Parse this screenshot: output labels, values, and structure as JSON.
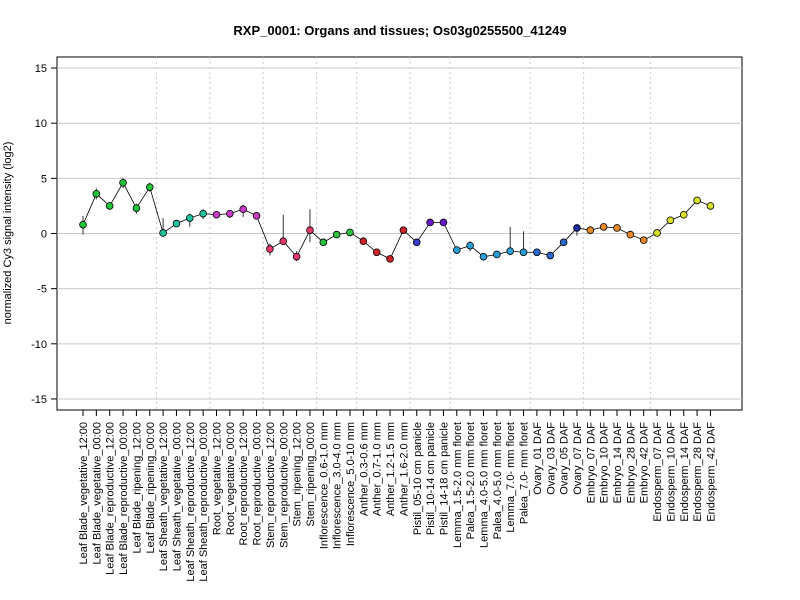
{
  "chart_data": {
    "type": "line",
    "title": "RXP_0001: Organs and tissues; Os03g0255500_41249",
    "ylabel": "normalized Cy3 signal intensity (log2)",
    "xlabel": "",
    "ylim": [
      -16,
      16
    ],
    "yticks": [
      -15,
      -10,
      -5,
      0,
      5,
      10,
      15
    ],
    "grid": {
      "horizontal": true,
      "vertical_dotted_separators": true
    },
    "categories": [
      "Leaf Blade_vegetative_12:00",
      "Leaf Blade_vegetative_00:00",
      "Leaf Blade_reproductive_12:00",
      "Leaf Blade_reproductive_00:00",
      "Leaf Blade_ripening_12:00",
      "Leaf Blade_ripening_00:00",
      "Leaf Sheath_vegetative_12:00",
      "Leaf Sheath_vegetative_00:00",
      "Leaf Sheath_reproductive_12:00",
      "Leaf Sheath_reproductive_00:00",
      "Root_vegetative_12:00",
      "Root_vegetative_00:00",
      "Root_reproductive_12:00",
      "Root_reproductive_00:00",
      "Stem_reproductive_12:00",
      "Stem_reproductive_00:00",
      "Stem_ripening_12:00",
      "Stem_ripening_00:00",
      "Inflorescence_0.6-1.0 mm",
      "Inflorescence_3.0-4.0 mm",
      "Inflorescence_5.0-10 mm",
      "Anther_0.3-0.6 mm",
      "Anther_0.7-1.0 mm",
      "Anther_1.2-1.5 mm",
      "Anther_1.6-2.0 mm",
      "Pistil_05-10 cm panicle",
      "Pistil_10-14 cm panicle",
      "Pistil_14-18 cm panicle",
      "Lemma_1.5-2.0 mm floret",
      "Palea_1.5-2.0 mm floret",
      "Lemma_4.0-5.0 mm floret",
      "Palea_4.0-5.0 mm floret",
      "Lemma_7.0- mm floret",
      "Palea_7.0- mm floret",
      "Ovary_01 DAF",
      "Ovary_03 DAF",
      "Ovary_05 DAF",
      "Ovary_07 DAF",
      "Embryo_07 DAF",
      "Embryo_10 DAF",
      "Embryo_14 DAF",
      "Embryo_28 DAF",
      "Embryo_42 DAF",
      "Endosperm_07 DAF",
      "Endosperm_10 DAF",
      "Endosperm_14 DAF",
      "Endosperm_28 DAF",
      "Endosperm_42 DAF"
    ],
    "values": [
      0.8,
      3.6,
      2.5,
      4.6,
      2.3,
      4.2,
      0.05,
      0.9,
      1.4,
      1.8,
      1.7,
      1.8,
      2.2,
      1.6,
      -1.4,
      -0.7,
      -2.1,
      0.3,
      -0.8,
      -0.1,
      0.1,
      -0.7,
      -1.7,
      -2.3,
      0.3,
      -0.8,
      1.0,
      1.0,
      -1.5,
      -1.1,
      -2.1,
      -1.9,
      -1.6,
      -1.7,
      -1.7,
      -2.0,
      -0.8,
      0.5,
      0.3,
      0.6,
      0.5,
      -0.1,
      -0.6,
      0.05,
      1.2,
      1.7,
      3.0,
      2.5
    ],
    "error_low": [
      -0.1,
      3.1,
      2.2,
      4.1,
      1.8,
      3.8,
      -0.2,
      0.6,
      0.6,
      1.3,
      1.4,
      1.4,
      1.5,
      1.5,
      -2.0,
      -1.0,
      -2.5,
      -0.8,
      -0.9,
      -0.2,
      -0.1,
      -0.8,
      -1.9,
      -2.4,
      0.1,
      -1.0,
      0.8,
      0.8,
      -1.8,
      -1.6,
      -2.2,
      -2.0,
      -1.8,
      -1.8,
      -1.8,
      -2.1,
      -0.9,
      -0.2,
      0.2,
      0.5,
      0.4,
      -0.2,
      -0.7,
      -0.1,
      0.9,
      1.5,
      2.8,
      2.3
    ],
    "error_high": [
      1.6,
      4.1,
      2.8,
      5.0,
      2.7,
      4.6,
      1.4,
      1.2,
      1.8,
      2.2,
      2.0,
      2.1,
      2.6,
      1.7,
      -0.9,
      1.7,
      -1.6,
      2.2,
      -0.6,
      0.0,
      0.2,
      -0.5,
      -1.5,
      -2.2,
      0.5,
      -0.6,
      1.2,
      1.2,
      -1.2,
      -0.7,
      -1.9,
      -1.7,
      0.6,
      0.2,
      -1.6,
      -1.8,
      -0.6,
      0.7,
      0.4,
      0.7,
      0.6,
      0.0,
      -0.4,
      0.2,
      1.4,
      1.9,
      3.2,
      2.7
    ],
    "point_colors": [
      "#22c43a",
      "#22c43a",
      "#22c43a",
      "#22c43a",
      "#22c43a",
      "#22c43a",
      "#1fc49e",
      "#1fc49e",
      "#1fc49e",
      "#1fc49e",
      "#c83ec8",
      "#c83ec8",
      "#c83ec8",
      "#c83ec8",
      "#e83a6a",
      "#e83a6a",
      "#e83a6a",
      "#e83a6a",
      "#2fbf3f",
      "#2fbf3f",
      "#2fbf3f",
      "#d0242a",
      "#d0242a",
      "#d0242a",
      "#d0242a",
      "#3a3acf",
      "#6a1ac8",
      "#6a1ac8",
      "#2aa0d8",
      "#2aa0d8",
      "#2aa0d8",
      "#2aa0d8",
      "#2aa0d8",
      "#2aa0d8",
      "#2a6acf",
      "#2a6acf",
      "#2a6acf",
      "#1a2aa0",
      "#e88a2a",
      "#e88a2a",
      "#e88a2a",
      "#e88a2a",
      "#e88a2a",
      "#d8e02a",
      "#d8e02a",
      "#d8e02a",
      "#d8e02a",
      "#d8e02a"
    ],
    "separators_after_index": [
      5,
      9,
      13,
      17,
      20,
      24,
      27,
      33,
      37,
      42
    ]
  }
}
